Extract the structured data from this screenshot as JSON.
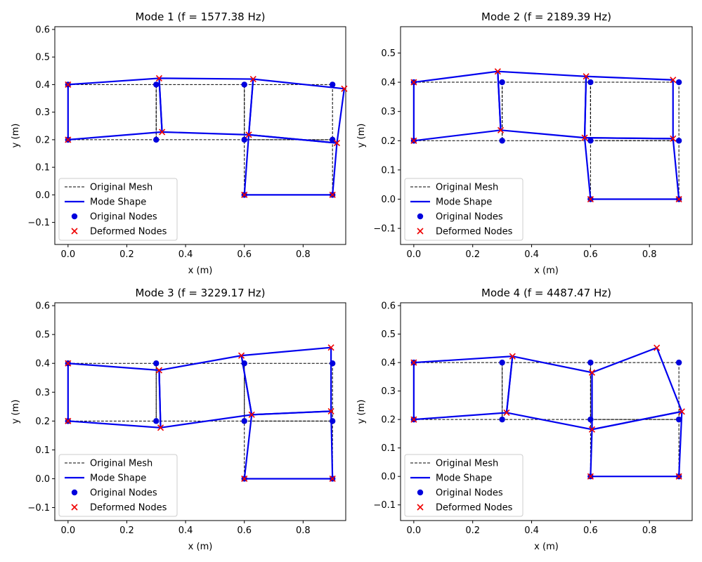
{
  "colors": {
    "original_mesh": "#000000",
    "mode_shape": "#0000ee",
    "original_nodes": "#0000dd",
    "deformed_nodes": "#ee0000"
  },
  "legend_labels": [
    "Original Mesh",
    "Mode Shape",
    "Original Nodes",
    "Deformed Nodes"
  ],
  "chart_data": [
    {
      "type": "line",
      "title": "Mode 1 (f = 1577.38 Hz)",
      "xlabel": "x (m)",
      "ylabel": "y (m)",
      "xlim": [
        -0.045,
        0.945
      ],
      "ylim": [
        -0.18,
        0.61
      ],
      "xticks": [
        0.0,
        0.2,
        0.4,
        0.6,
        0.8
      ],
      "xtick_labels": [
        "0.0",
        "0.2",
        "0.4",
        "0.6",
        "0.8"
      ],
      "yticks": [
        -0.1,
        0.0,
        0.1,
        0.2,
        0.3,
        0.4,
        0.5,
        0.6
      ],
      "ytick_labels": [
        "−0.1",
        "0.0",
        "0.1",
        "0.2",
        "0.3",
        "0.4",
        "0.5",
        "0.6"
      ],
      "legend": "lower-left",
      "original_nodes": [
        [
          0,
          0.4
        ],
        [
          0.3,
          0.4
        ],
        [
          0.6,
          0.4
        ],
        [
          0.9,
          0.4
        ],
        [
          0,
          0.2
        ],
        [
          0.3,
          0.2
        ],
        [
          0.6,
          0.2
        ],
        [
          0.9,
          0.2
        ],
        [
          0.6,
          0
        ],
        [
          0.9,
          0
        ]
      ],
      "deformed_nodes": [
        [
          0,
          0.4
        ],
        [
          0.31,
          0.423
        ],
        [
          0.63,
          0.42
        ],
        [
          0.94,
          0.385
        ],
        [
          0,
          0.2
        ],
        [
          0.32,
          0.228
        ],
        [
          0.615,
          0.218
        ],
        [
          0.915,
          0.188
        ],
        [
          0.6,
          0
        ],
        [
          0.9,
          0
        ]
      ],
      "elements": [
        [
          0,
          1,
          5,
          4
        ],
        [
          1,
          2,
          6,
          5
        ],
        [
          2,
          3,
          7,
          6
        ],
        [
          6,
          7,
          9,
          8
        ]
      ]
    },
    {
      "type": "line",
      "title": "Mode 2 (f = 2189.39 Hz)",
      "xlabel": "x (m)",
      "ylabel": "y (m)",
      "xlim": [
        -0.045,
        0.945
      ],
      "ylim": [
        -0.155,
        0.59
      ],
      "xticks": [
        0.0,
        0.2,
        0.4,
        0.6,
        0.8
      ],
      "xtick_labels": [
        "0.0",
        "0.2",
        "0.4",
        "0.6",
        "0.8"
      ],
      "yticks": [
        -0.1,
        0.0,
        0.1,
        0.2,
        0.3,
        0.4,
        0.5
      ],
      "ytick_labels": [
        "−0.1",
        "0.0",
        "0.1",
        "0.2",
        "0.3",
        "0.4",
        "0.5"
      ],
      "legend": "lower-left",
      "original_nodes": [
        [
          0,
          0.4
        ],
        [
          0.3,
          0.4
        ],
        [
          0.6,
          0.4
        ],
        [
          0.9,
          0.4
        ],
        [
          0,
          0.2
        ],
        [
          0.3,
          0.2
        ],
        [
          0.6,
          0.2
        ],
        [
          0.9,
          0.2
        ],
        [
          0.6,
          0
        ],
        [
          0.9,
          0
        ]
      ],
      "deformed_nodes": [
        [
          0,
          0.4
        ],
        [
          0.285,
          0.437
        ],
        [
          0.585,
          0.42
        ],
        [
          0.88,
          0.408
        ],
        [
          0,
          0.2
        ],
        [
          0.295,
          0.236
        ],
        [
          0.58,
          0.21
        ],
        [
          0.88,
          0.207
        ],
        [
          0.6,
          0
        ],
        [
          0.9,
          0
        ]
      ],
      "elements": [
        [
          0,
          1,
          5,
          4
        ],
        [
          1,
          2,
          6,
          5
        ],
        [
          2,
          3,
          7,
          6
        ],
        [
          6,
          7,
          9,
          8
        ]
      ]
    },
    {
      "type": "line",
      "title": "Mode 3 (f = 3229.17 Hz)",
      "xlabel": "x (m)",
      "ylabel": "y (m)",
      "xlim": [
        -0.045,
        0.945
      ],
      "ylim": [
        -0.145,
        0.61
      ],
      "xticks": [
        0.0,
        0.2,
        0.4,
        0.6,
        0.8
      ],
      "xtick_labels": [
        "0.0",
        "0.2",
        "0.4",
        "0.6",
        "0.8"
      ],
      "yticks": [
        -0.1,
        0.0,
        0.1,
        0.2,
        0.3,
        0.4,
        0.5,
        0.6
      ],
      "ytick_labels": [
        "−0.1",
        "0.0",
        "0.1",
        "0.2",
        "0.3",
        "0.4",
        "0.5",
        "0.6"
      ],
      "legend": "lower-left",
      "original_nodes": [
        [
          0,
          0.4
        ],
        [
          0.3,
          0.4
        ],
        [
          0.6,
          0.4
        ],
        [
          0.9,
          0.4
        ],
        [
          0,
          0.2
        ],
        [
          0.3,
          0.2
        ],
        [
          0.6,
          0.2
        ],
        [
          0.9,
          0.2
        ],
        [
          0.6,
          0
        ],
        [
          0.9,
          0
        ]
      ],
      "deformed_nodes": [
        [
          0,
          0.4
        ],
        [
          0.31,
          0.376
        ],
        [
          0.59,
          0.427
        ],
        [
          0.895,
          0.455
        ],
        [
          0,
          0.2
        ],
        [
          0.315,
          0.177
        ],
        [
          0.625,
          0.222
        ],
        [
          0.895,
          0.234
        ],
        [
          0.6,
          0
        ],
        [
          0.9,
          0
        ]
      ],
      "elements": [
        [
          0,
          1,
          5,
          4
        ],
        [
          1,
          2,
          6,
          5
        ],
        [
          2,
          3,
          7,
          6
        ],
        [
          6,
          7,
          9,
          8
        ]
      ]
    },
    {
      "type": "line",
      "title": "Mode 4 (f = 4487.47 Hz)",
      "xlabel": "x (m)",
      "ylabel": "y (m)",
      "xlim": [
        -0.045,
        0.945
      ],
      "ylim": [
        -0.155,
        0.61
      ],
      "xticks": [
        0.0,
        0.2,
        0.4,
        0.6,
        0.8
      ],
      "xtick_labels": [
        "0.0",
        "0.2",
        "0.4",
        "0.6",
        "0.8"
      ],
      "yticks": [
        -0.1,
        0.0,
        0.1,
        0.2,
        0.3,
        0.4,
        0.5,
        0.6
      ],
      "ytick_labels": [
        "−0.1",
        "0.0",
        "0.1",
        "0.2",
        "0.3",
        "0.4",
        "0.5",
        "0.6"
      ],
      "legend": "lower-left",
      "original_nodes": [
        [
          0,
          0.4
        ],
        [
          0.3,
          0.4
        ],
        [
          0.6,
          0.4
        ],
        [
          0.9,
          0.4
        ],
        [
          0,
          0.2
        ],
        [
          0.3,
          0.2
        ],
        [
          0.6,
          0.2
        ],
        [
          0.9,
          0.2
        ],
        [
          0.6,
          0
        ],
        [
          0.9,
          0
        ]
      ],
      "deformed_nodes": [
        [
          0,
          0.4
        ],
        [
          0.335,
          0.422
        ],
        [
          0.605,
          0.365
        ],
        [
          0.825,
          0.452
        ],
        [
          0,
          0.2
        ],
        [
          0.315,
          0.224
        ],
        [
          0.605,
          0.165
        ],
        [
          0.91,
          0.228
        ],
        [
          0.6,
          0
        ],
        [
          0.9,
          0
        ]
      ],
      "elements": [
        [
          0,
          1,
          5,
          4
        ],
        [
          1,
          2,
          6,
          5
        ],
        [
          2,
          3,
          7,
          6
        ],
        [
          6,
          7,
          9,
          8
        ]
      ]
    }
  ]
}
